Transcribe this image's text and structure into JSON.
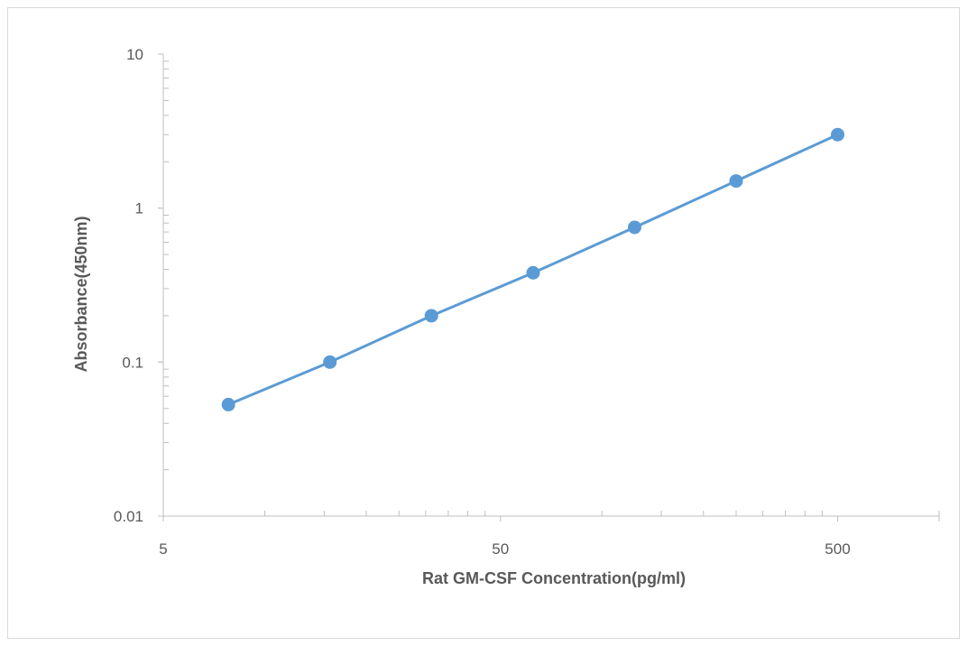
{
  "chart_data": {
    "type": "line",
    "xlabel": "Rat GM-CSF Concentration(pg/ml)",
    "ylabel": "Absorbance(450nm)",
    "x_scale": "log",
    "y_scale": "log",
    "xlim": [
      5,
      1000
    ],
    "ylim": [
      0.01,
      10
    ],
    "x_tick_labels": [
      "5",
      "50",
      "500"
    ],
    "y_tick_labels": [
      "0.01",
      "0.1",
      "1",
      "10"
    ],
    "grid": false,
    "legend": "none",
    "series": [
      {
        "x": [
          7.8,
          15.6,
          31.2,
          62.5,
          125,
          250,
          500
        ],
        "y": [
          0.053,
          0.1,
          0.2,
          0.38,
          0.75,
          1.5,
          3.0
        ],
        "color": "#5b9bd5",
        "markers": true
      }
    ]
  }
}
